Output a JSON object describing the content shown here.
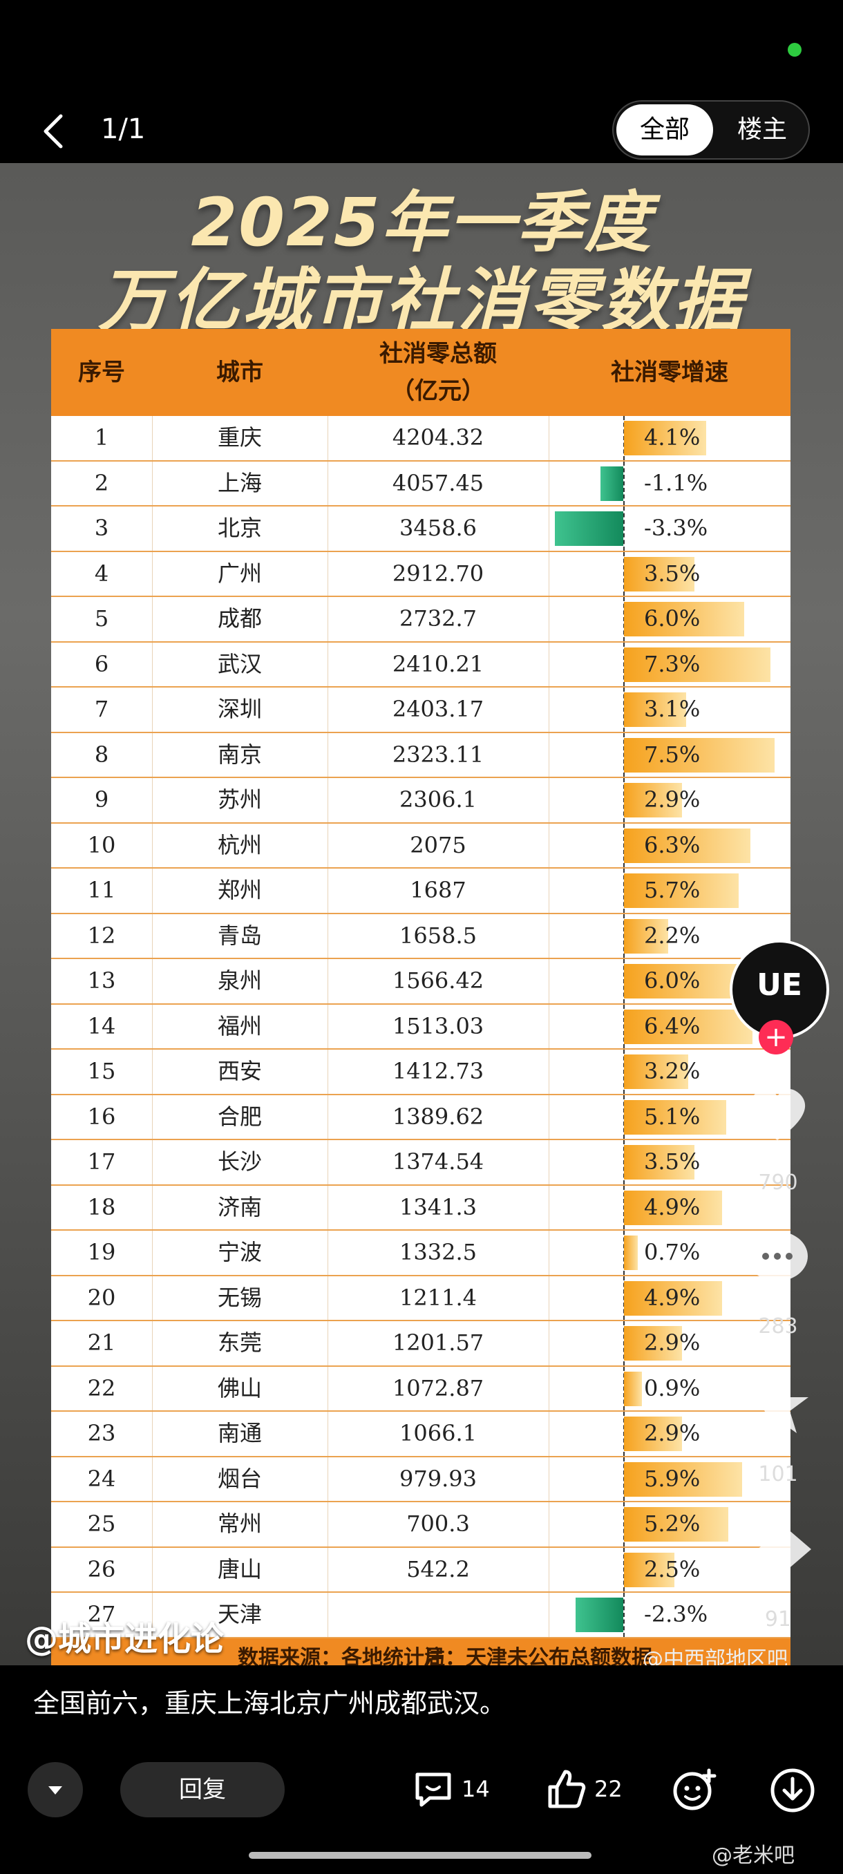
{
  "topbar": {
    "pager": "1/1",
    "tab_all": "全部",
    "tab_op": "楼主"
  },
  "poster": {
    "title_line1": "2025年一季度",
    "title_line2": "万亿城市社消零数据",
    "headers": {
      "index": "序号",
      "city": "城市",
      "total_line1": "社消零总额",
      "total_line2": "（亿元）",
      "growth": "社消零增速"
    },
    "footer": {
      "source": "数据来源：各地统计局",
      "note": "注：天津未公布总额数据"
    },
    "colors": {
      "positive_bar": "#f6a21e",
      "negative_bar": "#1fa36b",
      "header": "#f08a22"
    }
  },
  "chart_data": {
    "type": "table",
    "title": "2025年一季度 万亿城市社消零数据",
    "columns": [
      "序号",
      "城市",
      "社消零总额（亿元）",
      "社消零增速"
    ],
    "rows": [
      {
        "index": "1",
        "city": "重庆",
        "total": "4204.32",
        "growth": 4.1,
        "growth_label": "4.1%"
      },
      {
        "index": "2",
        "city": "上海",
        "total": "4057.45",
        "growth": -1.1,
        "growth_label": "-1.1%"
      },
      {
        "index": "3",
        "city": "北京",
        "total": "3458.6",
        "growth": -3.3,
        "growth_label": "-3.3%"
      },
      {
        "index": "4",
        "city": "广州",
        "total": "2912.70",
        "growth": 3.5,
        "growth_label": "3.5%"
      },
      {
        "index": "5",
        "city": "成都",
        "total": "2732.7",
        "growth": 6.0,
        "growth_label": "6.0%"
      },
      {
        "index": "6",
        "city": "武汉",
        "total": "2410.21",
        "growth": 7.3,
        "growth_label": "7.3%"
      },
      {
        "index": "7",
        "city": "深圳",
        "total": "2403.17",
        "growth": 3.1,
        "growth_label": "3.1%"
      },
      {
        "index": "8",
        "city": "南京",
        "total": "2323.11",
        "growth": 7.5,
        "growth_label": "7.5%"
      },
      {
        "index": "9",
        "city": "苏州",
        "total": "2306.1",
        "growth": 2.9,
        "growth_label": "2.9%"
      },
      {
        "index": "10",
        "city": "杭州",
        "total": "2075",
        "growth": 6.3,
        "growth_label": "6.3%"
      },
      {
        "index": "11",
        "city": "郑州",
        "total": "1687",
        "growth": 5.7,
        "growth_label": "5.7%"
      },
      {
        "index": "12",
        "city": "青岛",
        "total": "1658.5",
        "growth": 2.2,
        "growth_label": "2.2%"
      },
      {
        "index": "13",
        "city": "泉州",
        "total": "1566.42",
        "growth": 6.0,
        "growth_label": "6.0%"
      },
      {
        "index": "14",
        "city": "福州",
        "total": "1513.03",
        "growth": 6.4,
        "growth_label": "6.4%"
      },
      {
        "index": "15",
        "city": "西安",
        "total": "1412.73",
        "growth": 3.2,
        "growth_label": "3.2%"
      },
      {
        "index": "16",
        "city": "合肥",
        "total": "1389.62",
        "growth": 5.1,
        "growth_label": "5.1%"
      },
      {
        "index": "17",
        "city": "长沙",
        "total": "1374.54",
        "growth": 3.5,
        "growth_label": "3.5%"
      },
      {
        "index": "18",
        "city": "济南",
        "total": "1341.3",
        "growth": 4.9,
        "growth_label": "4.9%"
      },
      {
        "index": "19",
        "city": "宁波",
        "total": "1332.5",
        "growth": 0.7,
        "growth_label": "0.7%"
      },
      {
        "index": "20",
        "city": "无锡",
        "total": "1211.4",
        "growth": 4.9,
        "growth_label": "4.9%"
      },
      {
        "index": "21",
        "city": "东莞",
        "total": "1201.57",
        "growth": 2.9,
        "growth_label": "2.9%"
      },
      {
        "index": "22",
        "city": "佛山",
        "total": "1072.87",
        "growth": 0.9,
        "growth_label": "0.9%"
      },
      {
        "index": "23",
        "city": "南通",
        "total": "1066.1",
        "growth": 2.9,
        "growth_label": "2.9%"
      },
      {
        "index": "24",
        "city": "烟台",
        "total": "979.93",
        "growth": 5.9,
        "growth_label": "5.9%"
      },
      {
        "index": "25",
        "city": "常州",
        "total": "700.3",
        "growth": 5.2,
        "growth_label": "5.2%"
      },
      {
        "index": "26",
        "city": "唐山",
        "total": "542.2",
        "growth": 2.5,
        "growth_label": "2.5%"
      },
      {
        "index": "27",
        "city": "天津",
        "total": "",
        "growth": -2.3,
        "growth_label": "-2.3%"
      }
    ]
  },
  "watermarks": {
    "user": "@城市进化论",
    "source": "@中西部地区吧"
  },
  "side_actions": {
    "avatar_text": "UE",
    "follow": "+",
    "likes": "790",
    "comments": "283",
    "favorites": "101",
    "shares": "91"
  },
  "caption": "全国前六，重庆上海北京广州成都武汉。",
  "bottombar": {
    "reply": "回复",
    "comment_count": "14",
    "like_count": "22"
  },
  "tieba_mark": "@老米吧"
}
